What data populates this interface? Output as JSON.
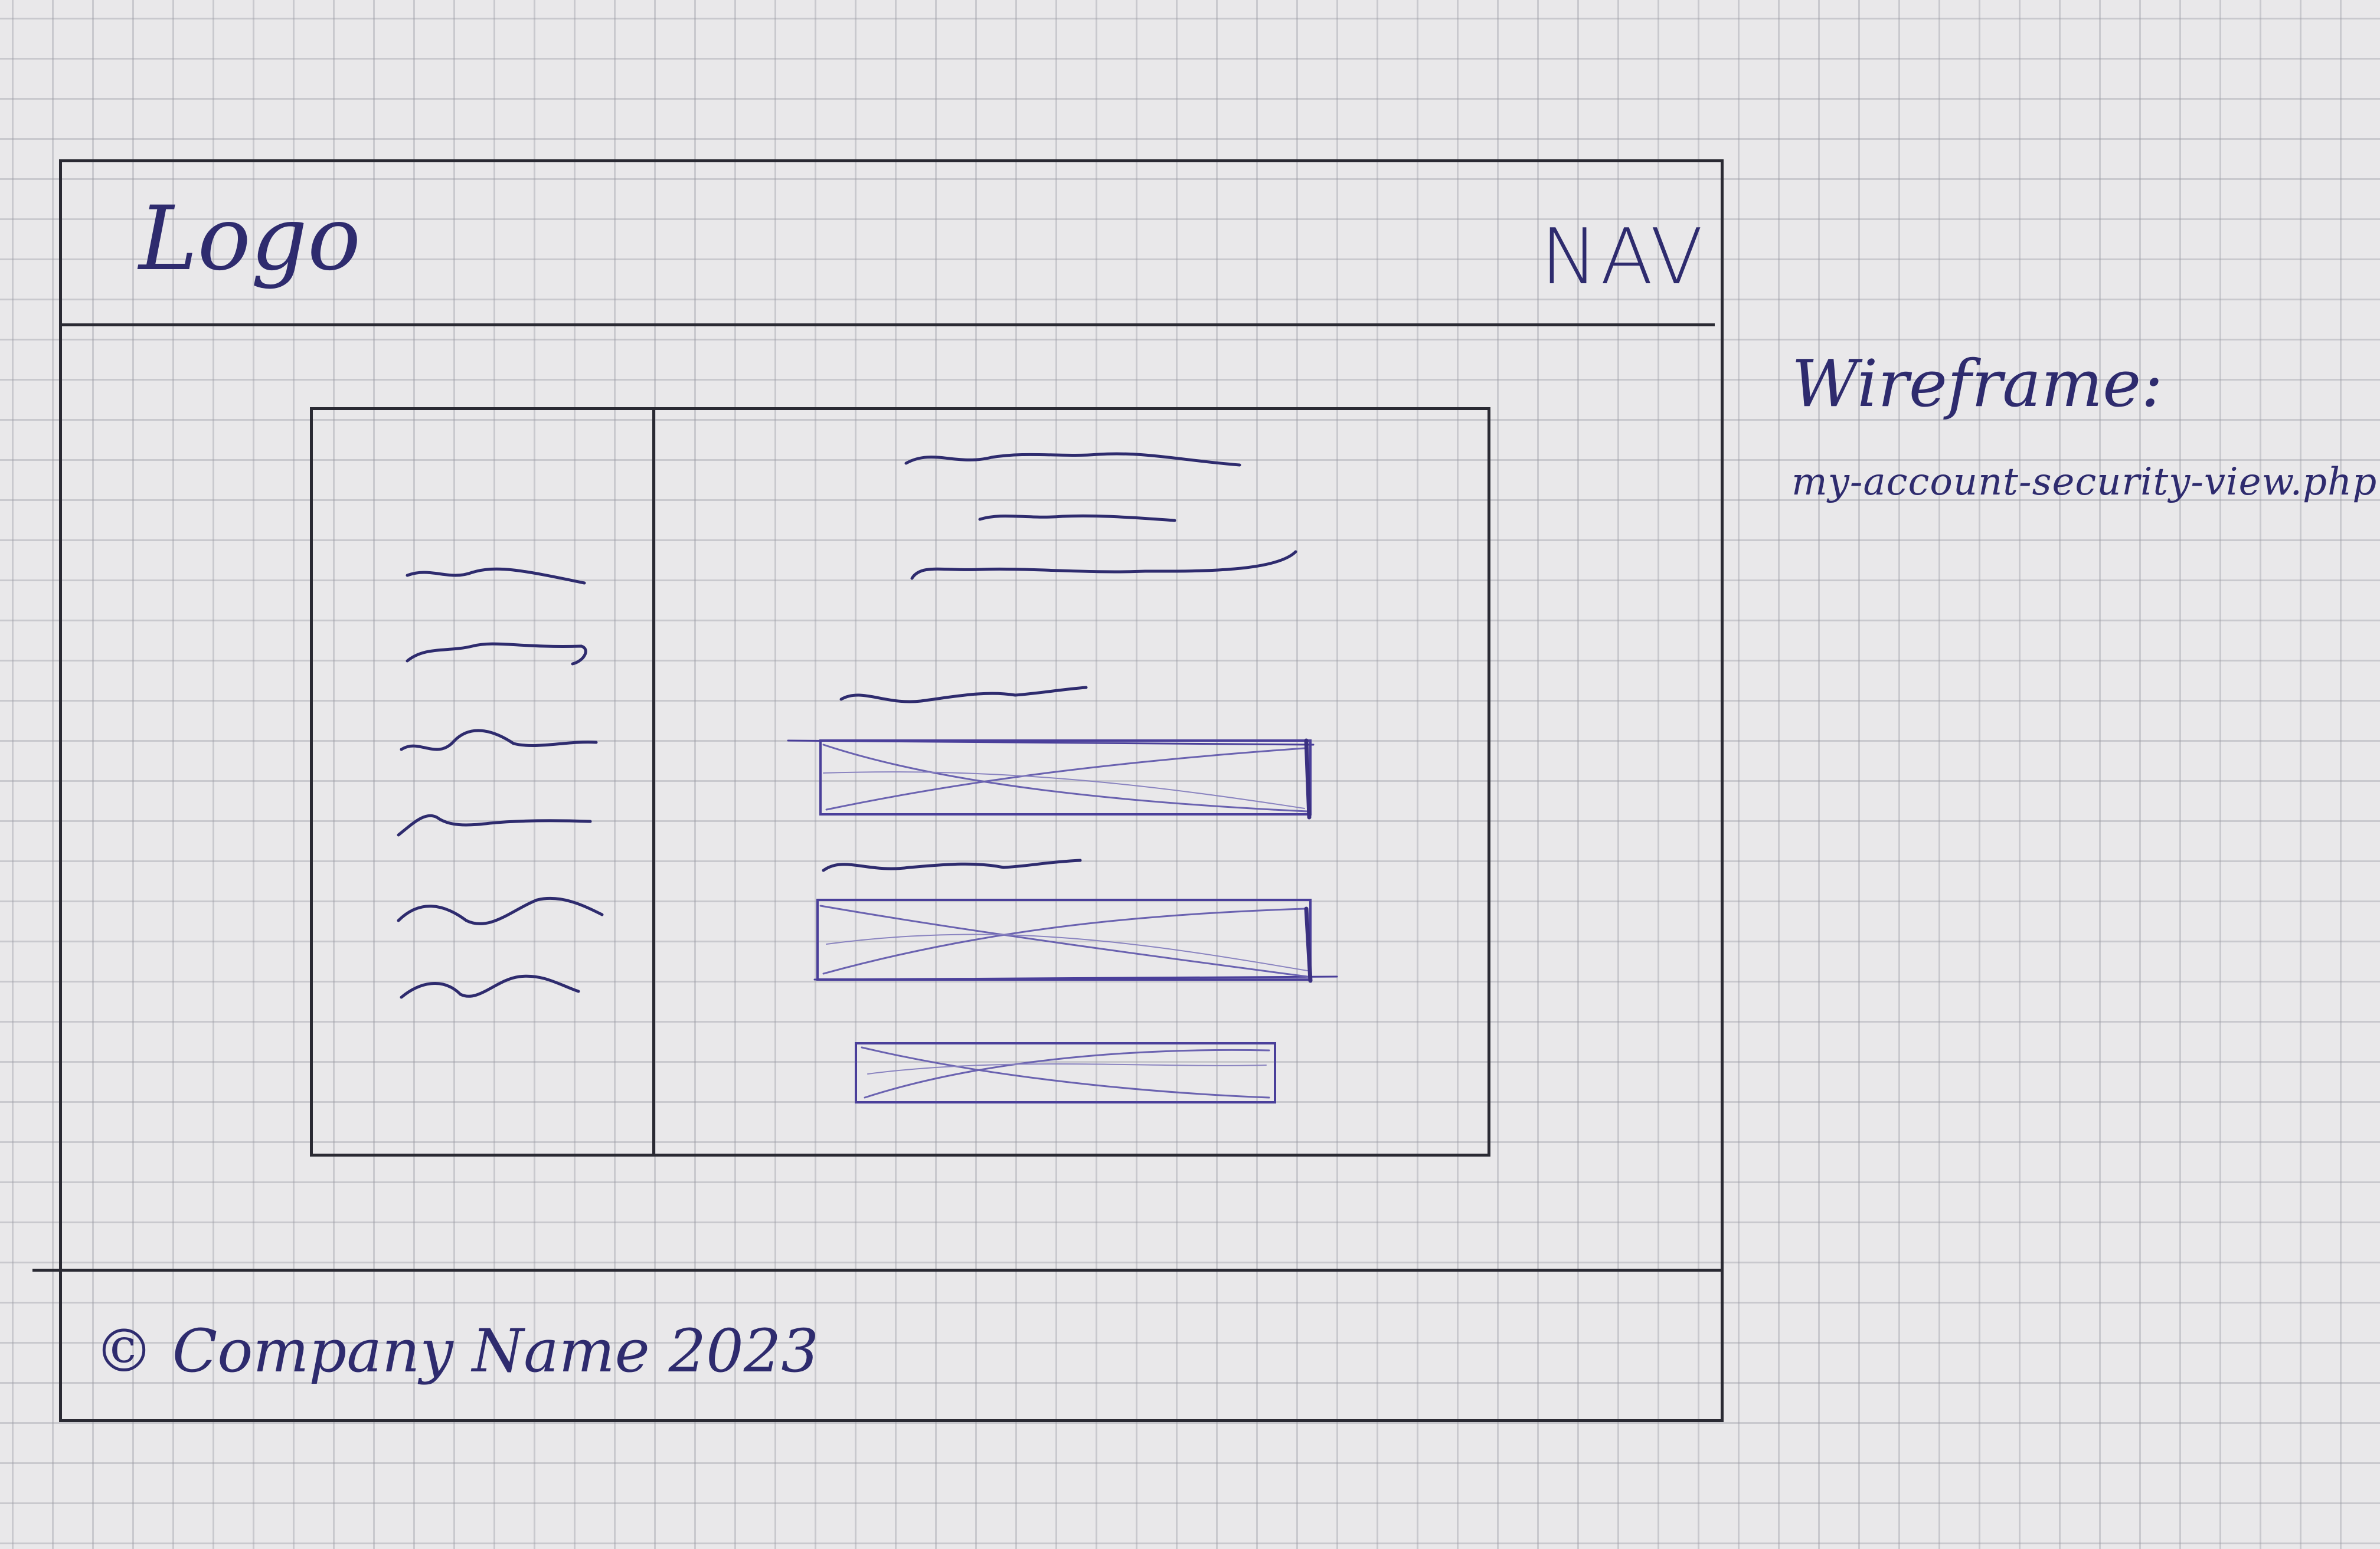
{
  "header": {
    "logo_label": "Logo",
    "nav_label": "NAV"
  },
  "footer": {
    "copyright": "© Company Name 2023"
  },
  "annotation": {
    "title": "Wireframe:",
    "filename": "my-account-security-view.php"
  },
  "colors": {
    "ink": "#2e2b6e",
    "pencil": "#2a2a33",
    "paper": "#e9e8ea",
    "grid": "#9696a0"
  },
  "sidebar": {
    "placeholder_line_count": 6
  },
  "main": {
    "heading_line_count": 3,
    "form_field_count": 2,
    "submit_button_count": 1
  }
}
